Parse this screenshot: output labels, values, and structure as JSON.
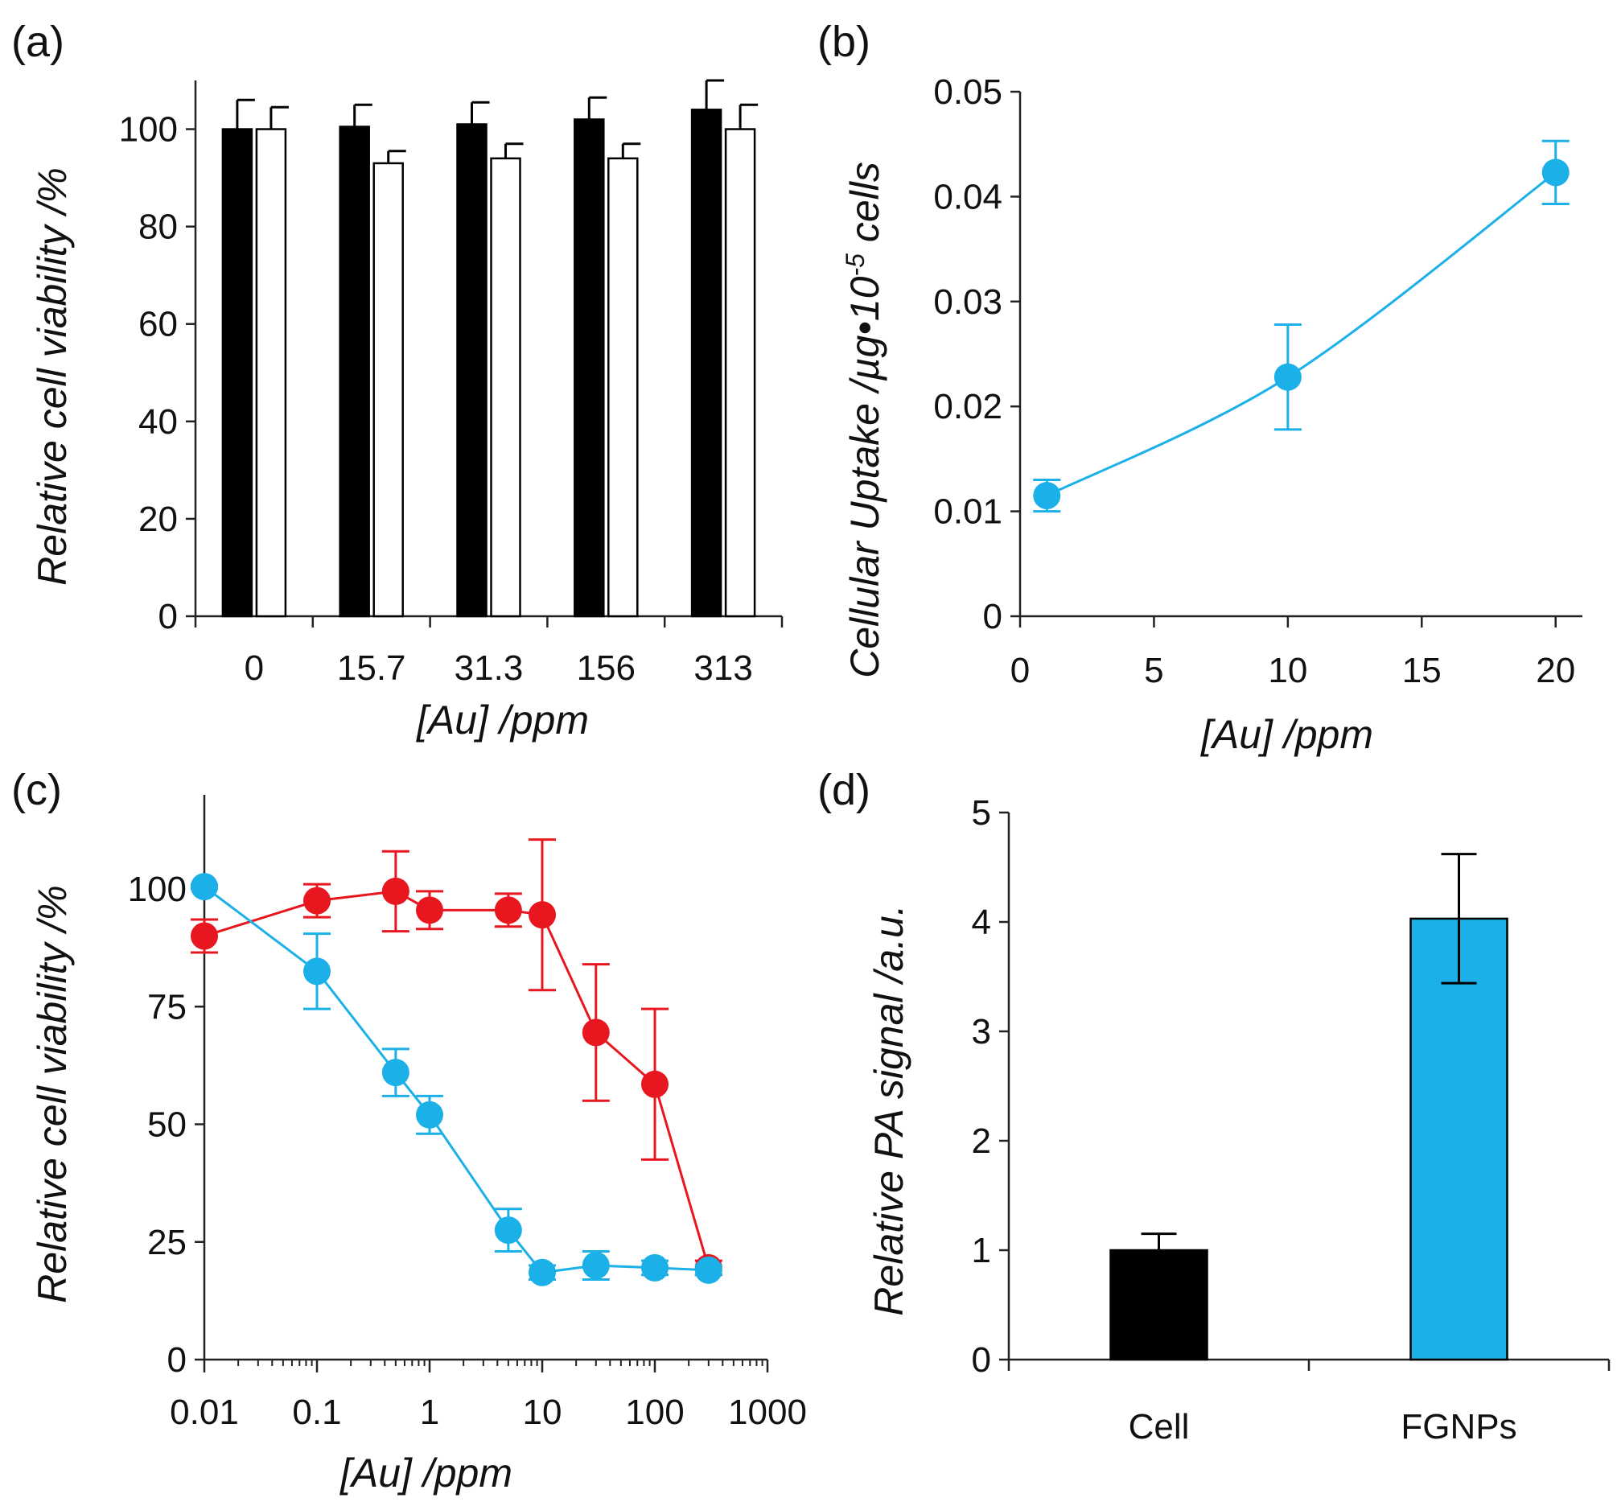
{
  "colors": {
    "black": "#000000",
    "blue": "#1bb0e8",
    "red": "#e8161e",
    "white": "#ffffff"
  },
  "chart_data": [
    {
      "panel": "(a)",
      "type": "bar",
      "xlabel": "[Au] /ppm",
      "ylabel": "Relative cell viability /%",
      "categories": [
        "0",
        "15.7",
        "31.3",
        "156",
        "313"
      ],
      "ylim": [
        0,
        110
      ],
      "yticks": [
        0,
        20,
        40,
        60,
        80,
        100
      ],
      "series": [
        {
          "name": "filled",
          "color": "#000000",
          "values": [
            100,
            100.5,
            101,
            102,
            104
          ],
          "errors": [
            6,
            4.5,
            4.5,
            4.5,
            6
          ]
        },
        {
          "name": "open",
          "color": "#ffffff",
          "values": [
            100,
            93,
            94,
            94,
            100
          ],
          "errors": [
            4.5,
            2.5,
            3,
            3,
            5
          ]
        }
      ]
    },
    {
      "panel": "(b)",
      "type": "line",
      "xlabel": "[Au] /ppm",
      "ylabel_main": "Cellular Uptake /µg•10",
      "ylabel_sup": "-5",
      "ylabel_end": " cells",
      "xlim": [
        0,
        21
      ],
      "ylim": [
        0,
        0.05
      ],
      "xticks": [
        0,
        5,
        10,
        15,
        20
      ],
      "yticks": [
        0,
        0.01,
        0.02,
        0.03,
        0.04,
        0.05
      ],
      "ytick_labels": [
        "0",
        "0.01",
        "0.02",
        "0.03",
        "0.04",
        "0.05"
      ],
      "series": [
        {
          "name": "uptake",
          "color": "#1bb0e8",
          "x": [
            1,
            10,
            20
          ],
          "y": [
            0.0115,
            0.0228,
            0.0423
          ],
          "errors": [
            0.0015,
            0.005,
            0.003
          ]
        }
      ]
    },
    {
      "panel": "(c)",
      "type": "line",
      "xscale": "log",
      "xlabel": "[Au] /ppm",
      "ylabel": "Relative cell viability /%",
      "xlim": [
        0.01,
        1000
      ],
      "ylim": [
        0,
        120
      ],
      "xticks": [
        0.01,
        0.1,
        1,
        10,
        100,
        1000
      ],
      "xtick_labels": [
        "0.01",
        "0.1",
        "1",
        "10",
        "100",
        "1000"
      ],
      "yticks": [
        0,
        25,
        50,
        75,
        100
      ],
      "series": [
        {
          "name": "red",
          "color": "#e8161e",
          "x": [
            0.01,
            0.1,
            0.5,
            1,
            5,
            10,
            30,
            100,
            300
          ],
          "y": [
            90,
            97.5,
            99.5,
            95.5,
            95.5,
            94.5,
            69.5,
            58.5,
            19.5
          ],
          "errors": [
            3.5,
            3.5,
            8.5,
            4,
            3.5,
            16,
            14.5,
            16,
            1.5
          ]
        },
        {
          "name": "blue",
          "color": "#1bb0e8",
          "x": [
            0.01,
            0.1,
            0.5,
            1,
            5,
            10,
            30,
            100,
            300
          ],
          "y": [
            100.5,
            82.5,
            61,
            52,
            27.5,
            18.5,
            20,
            19.5,
            19
          ],
          "errors": [
            0.5,
            8,
            5,
            4,
            4.5,
            1.5,
            3,
            1.5,
            1
          ]
        }
      ]
    },
    {
      "panel": "(d)",
      "type": "bar",
      "ylabel": "Relative PA signal /a.u.",
      "categories": [
        "Cell",
        "FGNPs"
      ],
      "ylim": [
        0,
        5
      ],
      "yticks": [
        0,
        1,
        2,
        3,
        4,
        5
      ],
      "values": [
        1.0,
        4.03
      ],
      "errors": [
        0.15,
        0.59
      ],
      "colors": [
        "#000000",
        "#1bb0e8"
      ]
    }
  ]
}
